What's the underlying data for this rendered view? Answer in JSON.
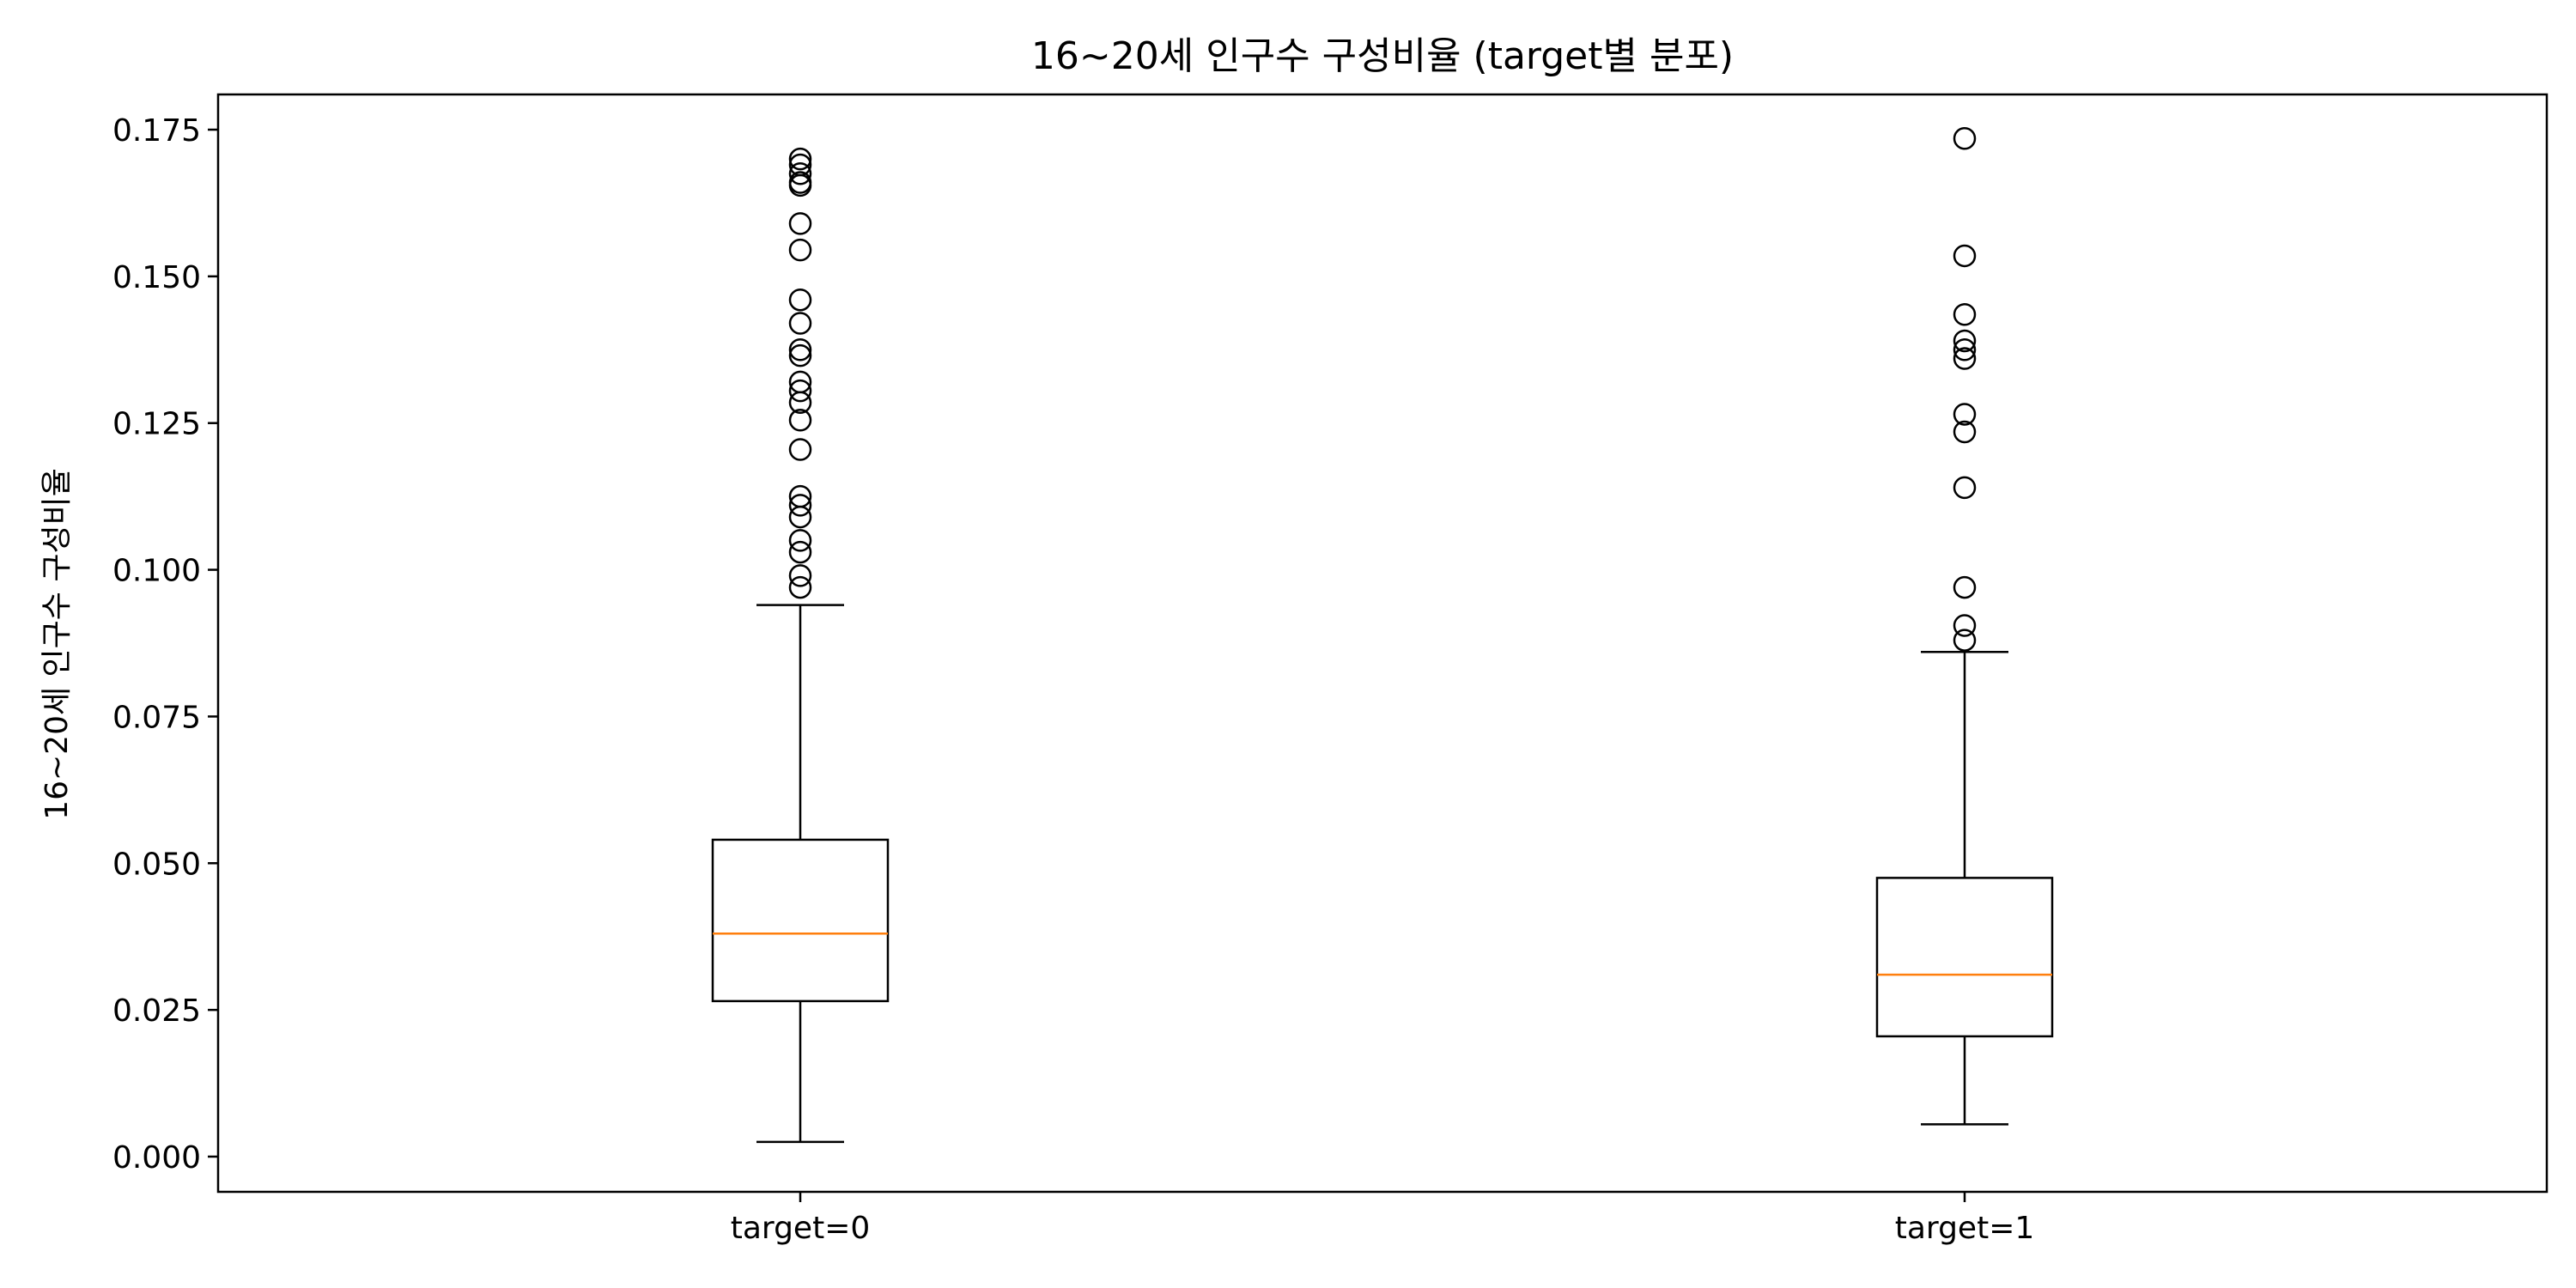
{
  "chart_data": {
    "type": "box",
    "title": "16~20세 인구수 구성비율 (target별 분포)",
    "xlabel": "",
    "ylabel": "16~20세 인구수 구성비율",
    "ylim": [
      -0.006,
      0.181
    ],
    "yticks": [
      0.0,
      0.025,
      0.05,
      0.075,
      0.1,
      0.125,
      0.15,
      0.175
    ],
    "ytick_labels": [
      "0.000",
      "0.025",
      "0.050",
      "0.075",
      "0.100",
      "0.125",
      "0.150",
      "0.175"
    ],
    "categories": [
      "target=0",
      "target=1"
    ],
    "boxes": [
      {
        "label": "target=0",
        "whisker_low": 0.0025,
        "q1": 0.0265,
        "median": 0.038,
        "q3": 0.054,
        "whisker_high": 0.094,
        "outliers": [
          0.097,
          0.099,
          0.103,
          0.105,
          0.109,
          0.111,
          0.1125,
          0.1205,
          0.1255,
          0.1285,
          0.1305,
          0.132,
          0.1365,
          0.1375,
          0.142,
          0.146,
          0.1545,
          0.159,
          0.1655,
          0.166,
          0.1675,
          0.169,
          0.17
        ]
      },
      {
        "label": "target=1",
        "whisker_low": 0.0055,
        "q1": 0.0205,
        "median": 0.031,
        "q3": 0.0475,
        "whisker_high": 0.086,
        "outliers": [
          0.088,
          0.0905,
          0.097,
          0.114,
          0.1235,
          0.1265,
          0.136,
          0.1375,
          0.139,
          0.1435,
          0.1535,
          0.1735
        ]
      }
    ],
    "grid": false,
    "colors": {
      "box": "#000000",
      "median": "#ff7f0e",
      "background": "#ffffff"
    }
  }
}
